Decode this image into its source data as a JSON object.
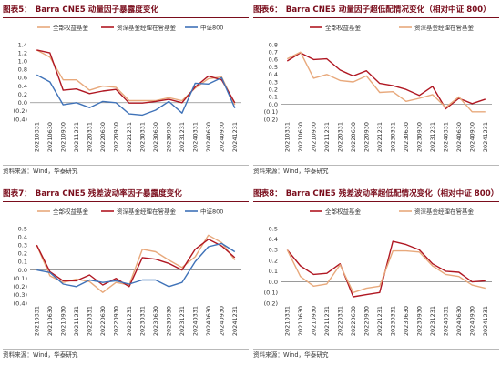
{
  "source_note": "资料来源：Wind，华泰研究",
  "colors": {
    "all_equity": "#e8a97c",
    "hs300": "#b01722",
    "zz800": "#3f72b8",
    "title": "#7a0d1c"
  },
  "chart_data": [
    {
      "id": "fig5",
      "type": "line",
      "fig_label": "图表5：",
      "title": "Barra CNE5 动量因子暴露度变化",
      "categories": [
        "20210331",
        "20210630",
        "20210930",
        "20211231",
        "20220331",
        "20220630",
        "20220930",
        "20221231",
        "20230331",
        "20230630",
        "20230930",
        "20231231",
        "20240331",
        "20240630",
        "20240930",
        "20241231"
      ],
      "ylim": [
        -0.4,
        1.4
      ],
      "yticks": [
        -0.4,
        -0.2,
        0,
        0.2,
        0.4,
        0.6,
        0.8,
        1.0,
        1.2,
        1.4
      ],
      "ytick_labels": [
        "(0.4)",
        "(0.2)",
        "0.0",
        "0.2",
        "0.4",
        "0.6",
        "0.8",
        "1.0",
        "1.2",
        "1.4"
      ],
      "legend": "top",
      "series": [
        {
          "name": "全部权益基金",
          "color": "#e8a97c",
          "values": [
            1.27,
            1.1,
            0.55,
            0.55,
            0.3,
            0.4,
            0.37,
            0.05,
            0.05,
            0.05,
            0.12,
            0.05,
            0.35,
            0.58,
            0.62,
            -0.05
          ]
        },
        {
          "name": "资深基金经理在管基金",
          "color": "#b01722",
          "values": [
            1.27,
            1.2,
            0.3,
            0.33,
            0.22,
            0.28,
            0.32,
            -0.01,
            -0.01,
            0.03,
            0.08,
            0.0,
            0.38,
            0.64,
            0.55,
            0.0
          ]
        },
        {
          "name": "中证800",
          "color": "#3f72b8",
          "values": [
            0.67,
            0.5,
            -0.05,
            0.0,
            -0.12,
            0.03,
            0.0,
            -0.27,
            -0.3,
            -0.18,
            0.03,
            -0.25,
            0.47,
            0.45,
            0.6,
            -0.13
          ]
        }
      ]
    },
    {
      "id": "fig6",
      "type": "line",
      "fig_label": "图表6：",
      "title": "Barra CNE5 动量因子超低配情况变化（相对中证 800）",
      "categories": [
        "20210331",
        "20210630",
        "20210930",
        "20211231",
        "20220331",
        "20220630",
        "20220930",
        "20221231",
        "20230331",
        "20230630",
        "20230930",
        "20231231",
        "20240331",
        "20240630",
        "20240930",
        "20241231"
      ],
      "ylim": [
        -0.2,
        0.8
      ],
      "yticks": [
        -0.2,
        -0.1,
        0,
        0.1,
        0.2,
        0.3,
        0.4,
        0.5,
        0.6,
        0.7,
        0.8
      ],
      "ytick_labels": [
        "(0.2)",
        "(0.1)",
        "0.0",
        "0.1",
        "0.2",
        "0.3",
        "0.4",
        "0.5",
        "0.6",
        "0.7",
        "0.8"
      ],
      "legend": "top",
      "series": [
        {
          "name": "全部权益基金",
          "color": "#b01722",
          "values": [
            0.58,
            0.69,
            0.6,
            0.61,
            0.46,
            0.38,
            0.45,
            0.28,
            0.25,
            0.2,
            0.12,
            0.24,
            -0.06,
            0.08,
            0.01,
            0.07
          ]
        },
        {
          "name": "资深基金经理在管基金",
          "color": "#e8a97c",
          "values": [
            0.61,
            0.7,
            0.35,
            0.4,
            0.32,
            0.3,
            0.38,
            0.16,
            0.17,
            0.04,
            0.08,
            0.13,
            -0.04,
            0.1,
            -0.1,
            -0.1
          ]
        }
      ]
    },
    {
      "id": "fig7",
      "type": "line",
      "fig_label": "图表7：",
      "title": "Barra CNE5 残差波动率因子暴露度变化",
      "categories": [
        "20210331",
        "20210630",
        "20210930",
        "20211231",
        "20220331",
        "20220630",
        "20220930",
        "20221231",
        "20230331",
        "20230630",
        "20230930",
        "20231231",
        "20240331",
        "20240630",
        "20240930",
        "20241231"
      ],
      "ylim": [
        -0.4,
        0.5
      ],
      "yticks": [
        -0.4,
        -0.3,
        -0.2,
        -0.1,
        0,
        0.1,
        0.2,
        0.3,
        0.4,
        0.5
      ],
      "ytick_labels": [
        "(0.4)",
        "(0.3)",
        "(0.2)",
        "(0.1)",
        "0.0",
        "0.1",
        "0.2",
        "0.3",
        "0.4",
        "0.5"
      ],
      "legend": "top",
      "series": [
        {
          "name": "全部权益基金",
          "color": "#e8a97c",
          "values": [
            0.3,
            -0.07,
            -0.15,
            -0.11,
            -0.14,
            -0.27,
            -0.15,
            -0.18,
            0.25,
            0.22,
            0.12,
            0.03,
            0.16,
            0.42,
            0.33,
            0.12
          ]
        },
        {
          "name": "资深基金经理在管基金",
          "color": "#b01722",
          "values": [
            0.3,
            -0.02,
            -0.13,
            -0.13,
            -0.06,
            -0.18,
            -0.1,
            -0.2,
            0.15,
            0.13,
            0.08,
            0.0,
            0.25,
            0.37,
            0.29,
            0.15
          ]
        },
        {
          "name": "中证800",
          "color": "#3f72b8",
          "values": [
            0.0,
            -0.03,
            -0.17,
            -0.2,
            -0.12,
            -0.15,
            -0.13,
            -0.17,
            -0.12,
            -0.12,
            -0.2,
            -0.15,
            0.1,
            0.28,
            0.32,
            0.22
          ]
        }
      ]
    },
    {
      "id": "fig8",
      "type": "line",
      "fig_label": "图表8：",
      "title": "Barra CNE5 残差波动率超低配情况变化（相对中证 800）",
      "categories": [
        "20210331",
        "20210630",
        "20210930",
        "20211231",
        "20220331",
        "20220630",
        "20220930",
        "20221231",
        "20230331",
        "20230630",
        "20230930",
        "20231231",
        "20240331",
        "20240630",
        "20240930",
        "20241231"
      ],
      "ylim": [
        -0.2,
        0.5
      ],
      "yticks": [
        -0.2,
        -0.1,
        0,
        0.1,
        0.2,
        0.3,
        0.4,
        0.5
      ],
      "ytick_labels": [
        "(0.2)",
        "(0.1)",
        "0.0",
        "0.1",
        "0.2",
        "0.3",
        "0.4",
        "0.5"
      ],
      "legend": "top",
      "series": [
        {
          "name": "全部权益基金",
          "color": "#b01722",
          "values": [
            0.3,
            0.15,
            0.07,
            0.08,
            0.17,
            -0.14,
            -0.12,
            -0.1,
            0.38,
            0.35,
            0.3,
            0.17,
            0.1,
            0.09,
            0.0,
            0.01
          ]
        },
        {
          "name": "资深基金经理在管基金",
          "color": "#e8a97c",
          "values": [
            0.3,
            0.05,
            -0.04,
            -0.02,
            0.16,
            -0.1,
            -0.06,
            -0.04,
            0.29,
            0.29,
            0.28,
            0.15,
            0.07,
            0.05,
            -0.03,
            -0.06
          ]
        }
      ]
    }
  ]
}
